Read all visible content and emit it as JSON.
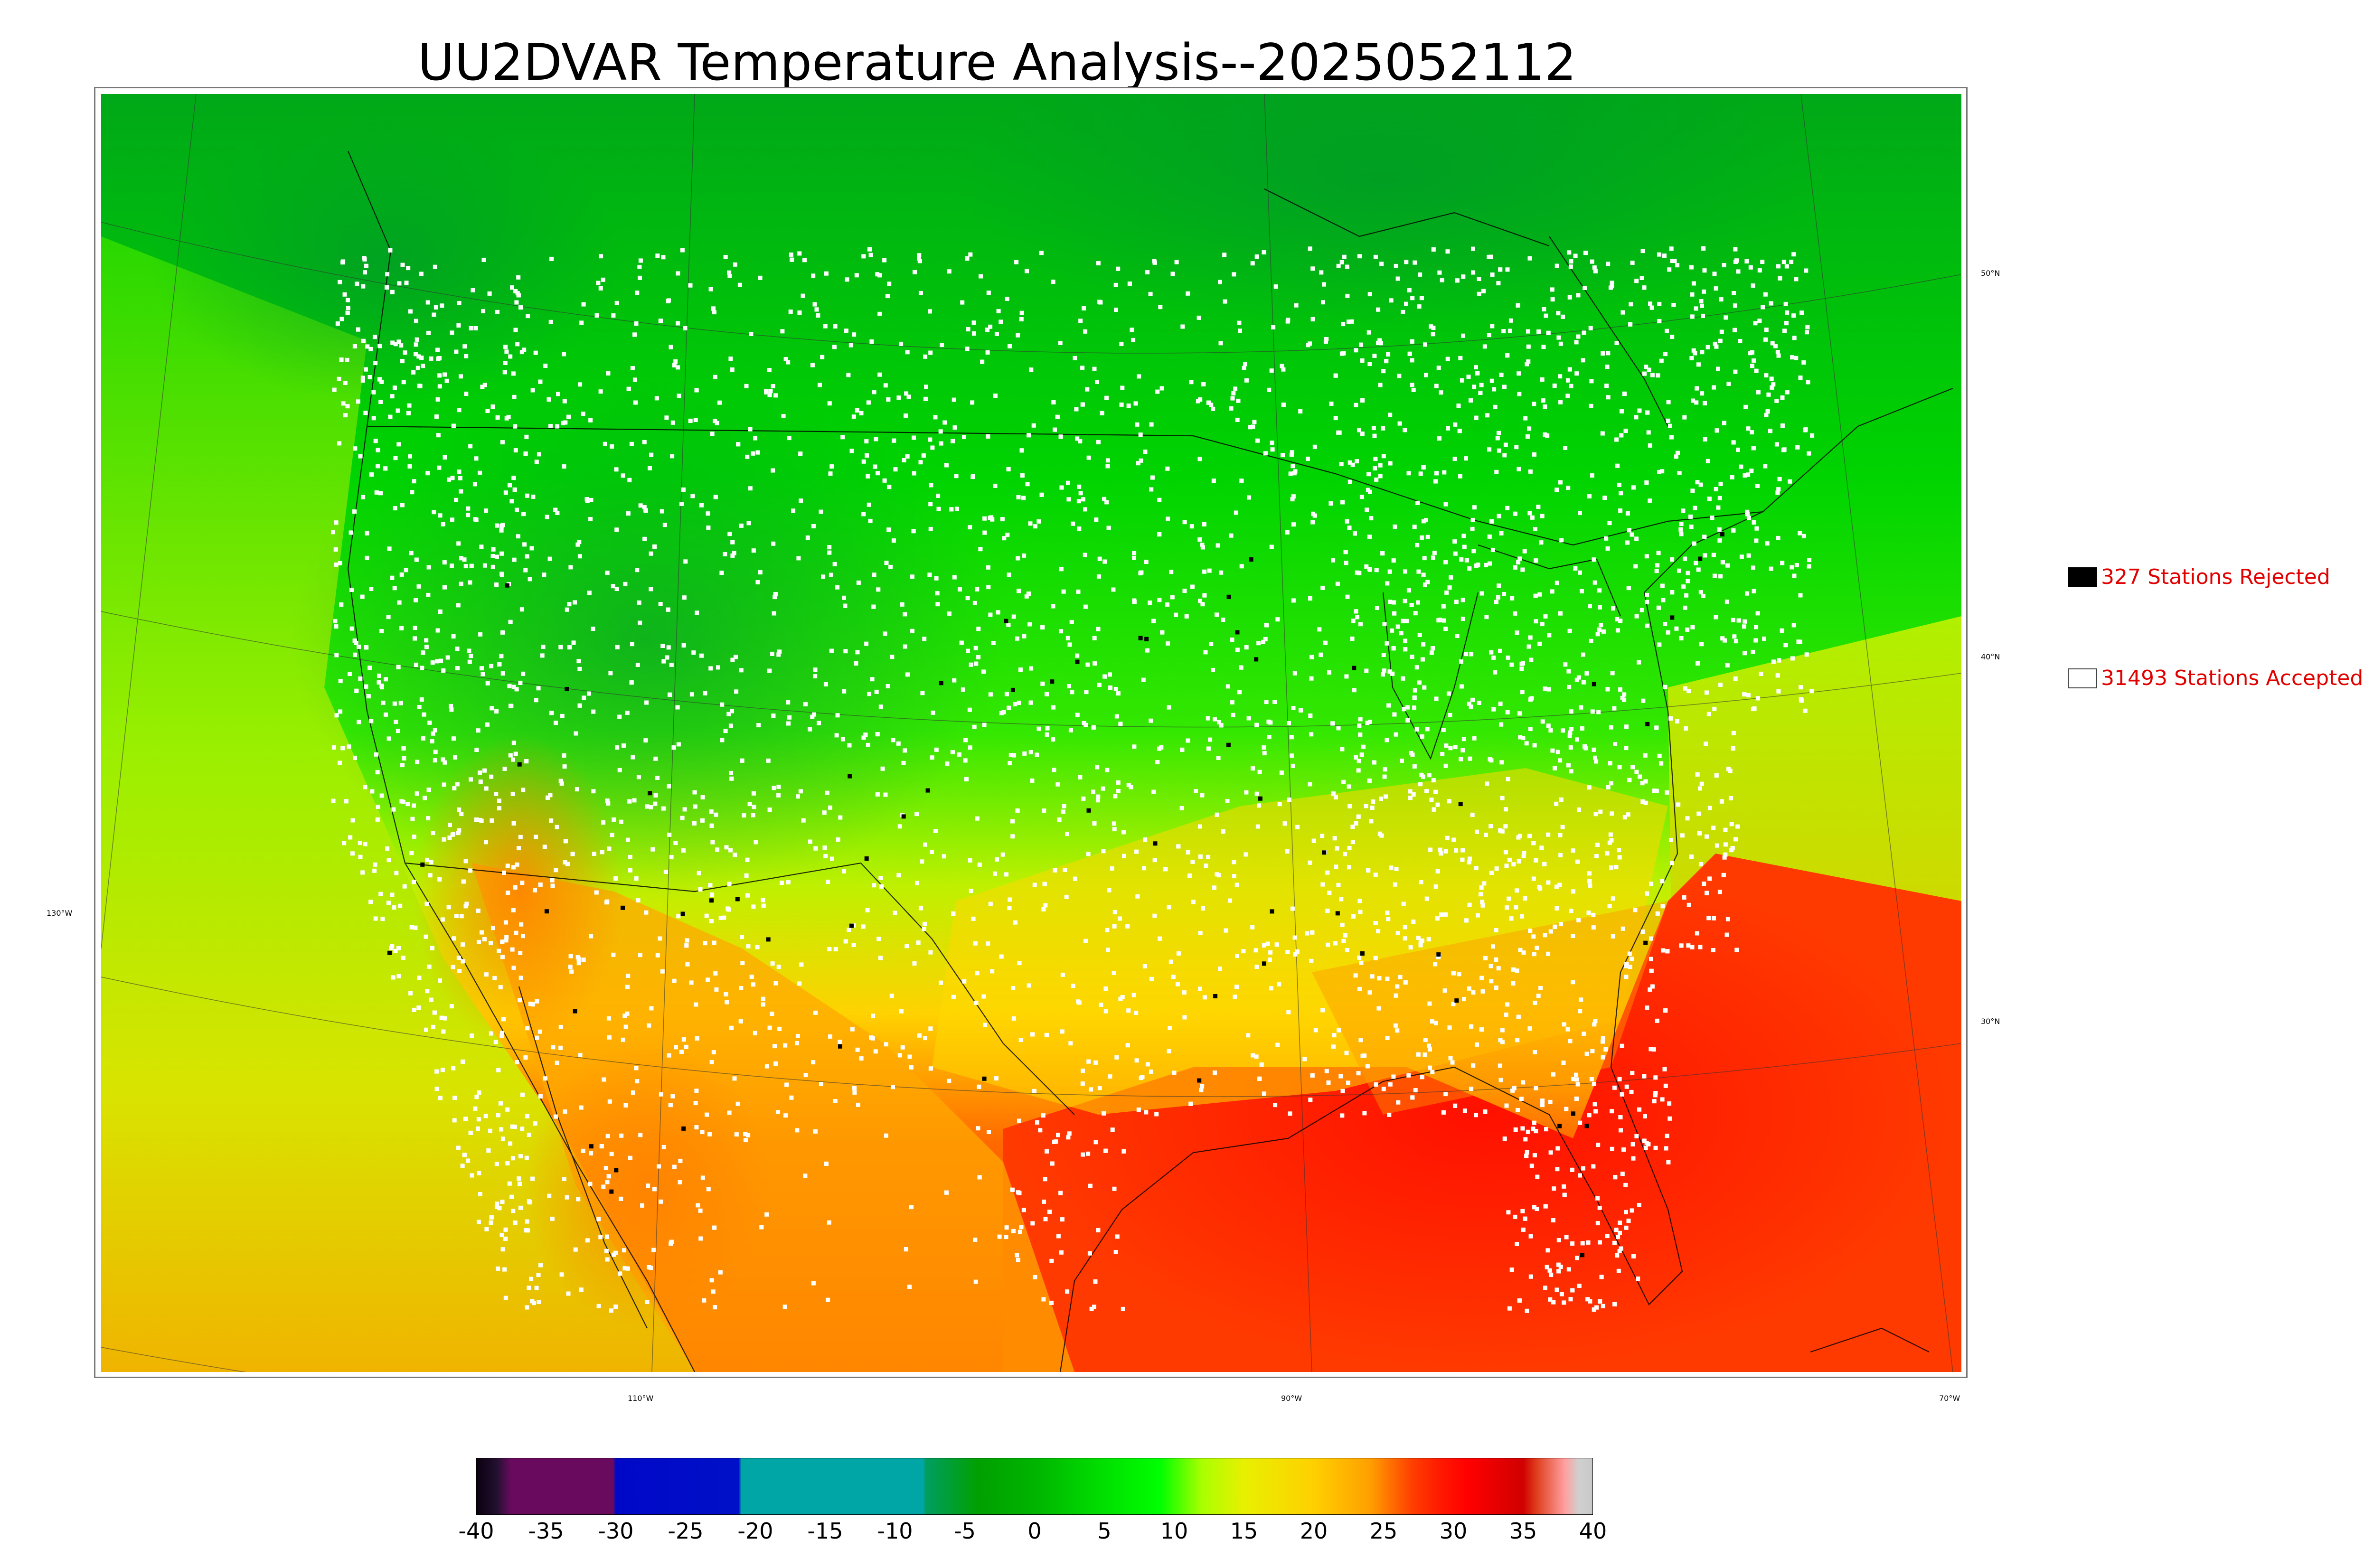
{
  "title": "UU2DVAR Temperature Analysis--2025052112",
  "legend": {
    "rejected": {
      "label": "327 Stations Rejected",
      "color": "#000000"
    },
    "accepted": {
      "label": "31493 Stations Accepted",
      "color": "#ffffff"
    }
  },
  "map_ticks": {
    "lon": [
      "130°W",
      "110°W",
      "90°W",
      "70°W"
    ],
    "lat": [
      "50°N",
      "40°N",
      "30°N"
    ]
  },
  "colorbar": {
    "labels": [
      "-40",
      "-35",
      "-30",
      "-25",
      "-20",
      "-15",
      "-10",
      "-5",
      "0",
      "5",
      "10",
      "15",
      "20",
      "25",
      "30",
      "35",
      "40"
    ],
    "stops": [
      {
        "v": -40,
        "c": "#0a0010"
      },
      {
        "v": -38.5,
        "c": "#241030"
      },
      {
        "v": -37.5,
        "c": "#6a0a5e"
      },
      {
        "v": -30.2,
        "c": "#6a0a5e"
      },
      {
        "v": -30,
        "c": "#0008c8"
      },
      {
        "v": -21.2,
        "c": "#0010c8"
      },
      {
        "v": -21,
        "c": "#00a6a6"
      },
      {
        "v": -8,
        "c": "#00a6a6"
      },
      {
        "v": -7.8,
        "c": "#009e60"
      },
      {
        "v": -4,
        "c": "#00a000"
      },
      {
        "v": 0,
        "c": "#00b400"
      },
      {
        "v": 5,
        "c": "#00e000"
      },
      {
        "v": 9,
        "c": "#00ff00"
      },
      {
        "v": 12,
        "c": "#aaff00"
      },
      {
        "v": 15,
        "c": "#e8f000"
      },
      {
        "v": 20,
        "c": "#ffd000"
      },
      {
        "v": 24,
        "c": "#ffa000"
      },
      {
        "v": 27,
        "c": "#ff4000"
      },
      {
        "v": 29,
        "c": "#ff1a00"
      },
      {
        "v": 31,
        "c": "#ff0000"
      },
      {
        "v": 35,
        "c": "#d00000"
      },
      {
        "v": 36,
        "c": "#e04020"
      },
      {
        "v": 37,
        "c": "#f07060"
      },
      {
        "v": 38,
        "c": "#ffa0a0"
      },
      {
        "v": 39,
        "c": "#d0d0d0"
      },
      {
        "v": 40,
        "c": "#c8c8c8"
      }
    ]
  }
}
